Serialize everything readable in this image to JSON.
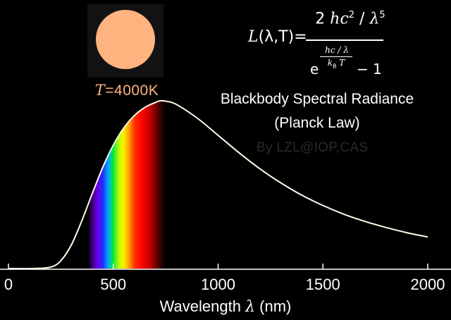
{
  "chart_data": {
    "type": "line",
    "title": "Blackbody Spectral Radiance",
    "subtitle": "(Planck Law)",
    "xlabel": "Wavelength λ (nm)",
    "xlabel_parts": {
      "pre": "Wavelength ",
      "symbol": "λ",
      "post": " (nm)"
    },
    "ylabel": "",
    "xlim": [
      0,
      2000
    ],
    "x_ticks": [
      0,
      500,
      1000,
      1500,
      2000
    ],
    "x_tick_labels": [
      "0",
      "500",
      "1000",
      "1500",
      "2000"
    ],
    "temperature_K": 4000,
    "peak_wavelength_nm": 724,
    "series": [
      {
        "curve": "Planck spectral radiance at T = 4000 K (relative, normalized to peak)",
        "x": [
          0,
          100,
          200,
          250,
          300,
          350,
          400,
          450,
          500,
          550,
          600,
          650,
          700,
          724,
          750,
          800,
          900,
          1000,
          1100,
          1200,
          1300,
          1400,
          1500,
          1600,
          1700,
          1800,
          1900,
          2000
        ],
        "values": [
          0,
          0.0,
          0.008,
          0.047,
          0.141,
          0.285,
          0.448,
          0.604,
          0.736,
          0.838,
          0.911,
          0.96,
          0.99,
          1.0,
          0.998,
          0.979,
          0.897,
          0.794,
          0.69,
          0.594,
          0.51,
          0.437,
          0.376,
          0.324,
          0.281,
          0.245,
          0.214,
          0.188
        ]
      }
    ],
    "visible_band_nm": [
      380,
      750
    ],
    "legend": "none",
    "grid": false,
    "colors": {
      "background": "#000000",
      "curve": "#fffbe6",
      "axis": "#ffffff",
      "star": "#ffb37e"
    }
  },
  "annotations": {
    "temperature_label": {
      "symbol": "T",
      "equals": "=4000K"
    },
    "formula": {
      "lhs_L": "L",
      "lhs_args": "(λ,T)=",
      "num_prefix": "2 ",
      "num_hc": "hc",
      "num_hc_exp": "2",
      "num_slash": " / ",
      "num_lambda": "λ",
      "num_lambda_exp": "5",
      "den_e": "e",
      "exp_num": "hc / λ",
      "exp_den_k": "k",
      "exp_den_sub": "B",
      "exp_den_T": " T",
      "den_minus_one": "− 1"
    },
    "watermark": "By LZL@IOP,CAS"
  }
}
